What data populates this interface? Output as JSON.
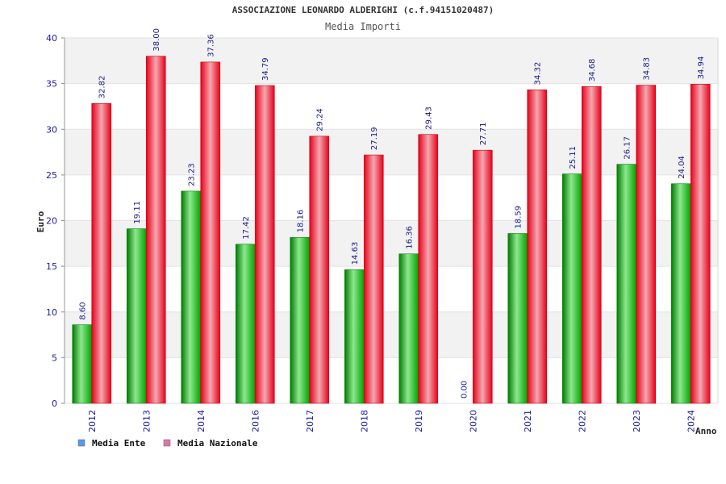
{
  "chart_data": {
    "type": "bar",
    "title": "ASSOCIAZIONE LEONARDO ALDERIGHI (c.f.94151020487)",
    "subtitle": "Media Importi",
    "xlabel": "Anno",
    "ylabel": "Euro",
    "ylim": [
      0,
      40
    ],
    "yticks": [
      "0",
      "5",
      "10",
      "15",
      "20",
      "25",
      "30",
      "35",
      "40"
    ],
    "categories": [
      "2012",
      "2013",
      "2014",
      "2016",
      "2017",
      "2018",
      "2019",
      "2020",
      "2021",
      "2022",
      "2023",
      "2024"
    ],
    "series": [
      {
        "name": "Media Ente",
        "values": [
          8.6,
          19.11,
          23.23,
          17.42,
          18.16,
          14.63,
          16.36,
          0.0,
          18.59,
          25.11,
          26.17,
          24.04
        ],
        "labels": [
          "8.60",
          "19.11",
          "23.23",
          "17.42",
          "18.16",
          "14.63",
          "16.36",
          "0.00",
          "18.59",
          "25.11",
          "26.17",
          "24.04"
        ],
        "color": "#00aa00",
        "legend_color": "#5599ee"
      },
      {
        "name": "Media Nazionale",
        "values": [
          32.82,
          38.0,
          37.36,
          34.79,
          29.24,
          27.19,
          29.43,
          27.71,
          34.32,
          34.68,
          34.83,
          34.94
        ],
        "labels": [
          "32.82",
          "38.00",
          "37.36",
          "34.79",
          "29.24",
          "27.19",
          "29.43",
          "27.71",
          "34.32",
          "34.68",
          "34.83",
          "34.94"
        ],
        "color": "#ee0011",
        "legend_color": "#dd77aa"
      }
    ],
    "grid": true,
    "legend_position": "bottom-left"
  }
}
